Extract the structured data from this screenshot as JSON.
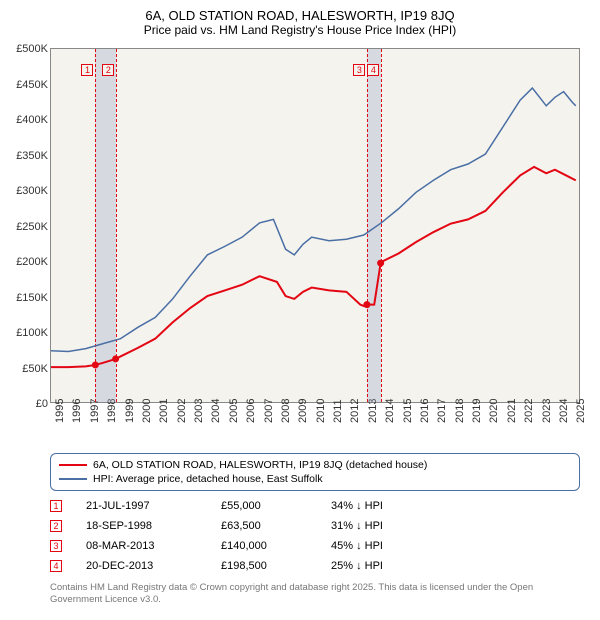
{
  "title": "6A, OLD STATION ROAD, HALESWORTH, IP19 8JQ",
  "subtitle": "Price paid vs. HM Land Registry's House Price Index (HPI)",
  "chart": {
    "type": "line",
    "background_color": "#f5f3ee",
    "xlim": [
      1995,
      2025.5
    ],
    "ylim": [
      0,
      500000
    ],
    "ylabels": [
      "£0",
      "£50K",
      "£100K",
      "£150K",
      "£200K",
      "£250K",
      "£300K",
      "£350K",
      "£400K",
      "£450K",
      "£500K"
    ],
    "yvalues": [
      0,
      50000,
      100000,
      150000,
      200000,
      250000,
      300000,
      350000,
      400000,
      450000,
      500000
    ],
    "xlabels": [
      "1995",
      "1996",
      "1997",
      "1998",
      "1999",
      "2000",
      "2001",
      "2002",
      "2003",
      "2004",
      "2005",
      "2006",
      "2007",
      "2008",
      "2009",
      "2010",
      "2011",
      "2012",
      "2013",
      "2014",
      "2015",
      "2016",
      "2017",
      "2018",
      "2019",
      "2020",
      "2021",
      "2022",
      "2023",
      "2024",
      "2025"
    ],
    "xvalues": [
      1995,
      1996,
      1997,
      1998,
      1999,
      2000,
      2001,
      2002,
      2003,
      2004,
      2005,
      2006,
      2007,
      2008,
      2009,
      2010,
      2011,
      2012,
      2013,
      2014,
      2015,
      2016,
      2017,
      2018,
      2019,
      2020,
      2021,
      2022,
      2023,
      2024,
      2025
    ],
    "series": [
      {
        "name": "red",
        "color": "#e30613",
        "width": 2,
        "data": [
          [
            1995,
            52000
          ],
          [
            1996,
            52000
          ],
          [
            1997,
            53000
          ],
          [
            1997.55,
            55000
          ],
          [
            1998,
            58000
          ],
          [
            1998.72,
            63500
          ],
          [
            1999,
            67000
          ],
          [
            2000,
            79000
          ],
          [
            2001,
            92000
          ],
          [
            2002,
            115000
          ],
          [
            2003,
            135000
          ],
          [
            2004,
            152000
          ],
          [
            2005,
            160000
          ],
          [
            2006,
            168000
          ],
          [
            2007,
            180000
          ],
          [
            2008,
            172000
          ],
          [
            2008.5,
            152000
          ],
          [
            2009,
            148000
          ],
          [
            2009.5,
            158000
          ],
          [
            2010,
            164000
          ],
          [
            2011,
            160000
          ],
          [
            2012,
            158000
          ],
          [
            2012.8,
            140000
          ],
          [
            2013,
            138000
          ],
          [
            2013.18,
            140000
          ],
          [
            2013.6,
            140000
          ],
          [
            2013.97,
            198500
          ],
          [
            2014,
            200000
          ],
          [
            2015,
            212000
          ],
          [
            2016,
            228000
          ],
          [
            2017,
            242000
          ],
          [
            2018,
            254000
          ],
          [
            2019,
            260000
          ],
          [
            2020,
            272000
          ],
          [
            2021,
            298000
          ],
          [
            2022,
            322000
          ],
          [
            2022.8,
            334000
          ],
          [
            2023.5,
            325000
          ],
          [
            2024,
            330000
          ],
          [
            2024.8,
            320000
          ],
          [
            2025.2,
            315000
          ]
        ]
      },
      {
        "name": "blue",
        "color": "#4a6fa5",
        "width": 1.5,
        "data": [
          [
            1995,
            75000
          ],
          [
            1996,
            74000
          ],
          [
            1997,
            78000
          ],
          [
            1998,
            85000
          ],
          [
            1999,
            92000
          ],
          [
            2000,
            108000
          ],
          [
            2001,
            122000
          ],
          [
            2002,
            148000
          ],
          [
            2003,
            180000
          ],
          [
            2004,
            210000
          ],
          [
            2005,
            222000
          ],
          [
            2006,
            235000
          ],
          [
            2007,
            255000
          ],
          [
            2007.8,
            260000
          ],
          [
            2008.5,
            218000
          ],
          [
            2009,
            210000
          ],
          [
            2009.5,
            225000
          ],
          [
            2010,
            235000
          ],
          [
            2011,
            230000
          ],
          [
            2012,
            232000
          ],
          [
            2013,
            238000
          ],
          [
            2014,
            255000
          ],
          [
            2015,
            275000
          ],
          [
            2016,
            298000
          ],
          [
            2017,
            315000
          ],
          [
            2018,
            330000
          ],
          [
            2019,
            338000
          ],
          [
            2020,
            352000
          ],
          [
            2021,
            390000
          ],
          [
            2022,
            428000
          ],
          [
            2022.7,
            445000
          ],
          [
            2023.5,
            420000
          ],
          [
            2024,
            432000
          ],
          [
            2024.5,
            440000
          ],
          [
            2025,
            425000
          ],
          [
            2025.2,
            420000
          ]
        ]
      }
    ],
    "markers_on_red": [
      {
        "x": 1997.55,
        "y": 55000
      },
      {
        "x": 1998.72,
        "y": 63500
      },
      {
        "x": 2013.18,
        "y": 140000
      },
      {
        "x": 2013.97,
        "y": 198500
      }
    ],
    "marker_color": "#e30613",
    "marker_radius": 3.5,
    "vbands": [
      {
        "from": 1997.55,
        "to": 1998.72
      }
    ],
    "vlines": [
      {
        "x": 1997.55,
        "color": "#e30613"
      },
      {
        "x": 1998.72,
        "color": "#e30613"
      },
      {
        "x": 2013.18,
        "color": "#e30613"
      },
      {
        "x": 2013.97,
        "color": "#e30613"
      }
    ],
    "inline_markers": [
      {
        "n": "1",
        "x": 1997.1,
        "y": 470000,
        "color": "#e30613"
      },
      {
        "n": "2",
        "x": 1998.3,
        "y": 470000,
        "color": "#e30613"
      },
      {
        "n": "3",
        "x": 2012.75,
        "y": 470000,
        "color": "#e30613"
      },
      {
        "n": "4",
        "x": 2013.55,
        "y": 470000,
        "color": "#e30613"
      }
    ],
    "vband2": {
      "from": 2013.18,
      "to": 2013.97
    }
  },
  "legend": {
    "border_color": "#4a6fa5",
    "items": [
      {
        "color": "#e30613",
        "width": 2,
        "label": "6A, OLD STATION ROAD, HALESWORTH, IP19 8JQ (detached house)"
      },
      {
        "color": "#4a6fa5",
        "width": 1.5,
        "label": "HPI: Average price, detached house, East Suffolk"
      }
    ]
  },
  "events": [
    {
      "n": "1",
      "color": "#e30613",
      "date": "21-JUL-1997",
      "price": "£55,000",
      "pct": "34% ↓ HPI"
    },
    {
      "n": "2",
      "color": "#e30613",
      "date": "18-SEP-1998",
      "price": "£63,500",
      "pct": "31% ↓ HPI"
    },
    {
      "n": "3",
      "color": "#e30613",
      "date": "08-MAR-2013",
      "price": "£140,000",
      "pct": "45% ↓ HPI"
    },
    {
      "n": "4",
      "color": "#e30613",
      "date": "20-DEC-2013",
      "price": "£198,500",
      "pct": "25% ↓ HPI"
    }
  ],
  "footnote": "Contains HM Land Registry data © Crown copyright and database right 2025.\nThis data is licensed under the Open Government Licence v3.0."
}
